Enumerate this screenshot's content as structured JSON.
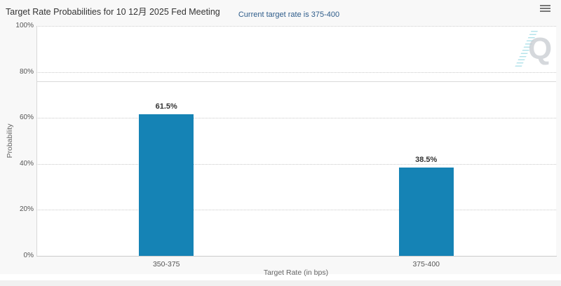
{
  "header": {
    "title": "Target Rate Probabilities for 10 12月 2025 Fed Meeting",
    "subtitle": "Current target rate is 375-400"
  },
  "menu": {
    "icon": "hamburger-menu-icon"
  },
  "watermark": {
    "letter": "Q"
  },
  "colors": {
    "bar": "#1583b5",
    "subtitle_text": "#2e5c8a",
    "title_text": "#333333",
    "axis_text": "#555555",
    "reference_line": "#d9d9d9"
  },
  "chart_data": {
    "type": "bar",
    "title": "Target Rate Probabilities for 10 12月 2025 Fed Meeting",
    "subtitle": "Current target rate is 375-400",
    "categories": [
      "350-375",
      "375-400"
    ],
    "values": [
      61.5,
      38.5
    ],
    "data_labels": [
      "61.5%",
      "38.5%"
    ],
    "xlabel": "Target Rate (in bps)",
    "ylabel": "Probability",
    "ylim": [
      0,
      100
    ],
    "yticks": [
      0,
      20,
      40,
      60,
      80,
      100
    ],
    "ytick_labels": [
      "0%",
      "20%",
      "40%",
      "60%",
      "80%",
      "100%"
    ],
    "grid": "horizontal-dotted",
    "legend": "none",
    "reference_line_value": 76
  }
}
